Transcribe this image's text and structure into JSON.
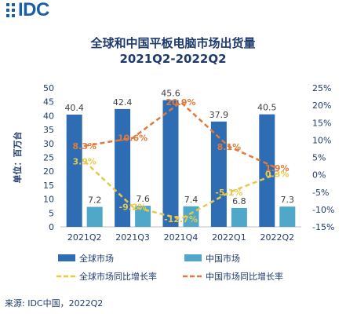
{
  "logo": {
    "text": "IDC"
  },
  "source": "来源: IDC中国，2022Q2",
  "chart_data": {
    "type": "bar",
    "title": "全球和中国平板电脑市场出货量",
    "subtitle": "2021Q2-2022Q2",
    "ylabel": "单位：百万台",
    "categories": [
      "2021Q2",
      "2021Q3",
      "2021Q4",
      "2022Q1",
      "2022Q2"
    ],
    "ylim": [
      0,
      50
    ],
    "yticks": [
      "0",
      "5",
      "10",
      "15",
      "20",
      "25",
      "30",
      "35",
      "40",
      "45",
      "50"
    ],
    "y2lim": [
      -15,
      25
    ],
    "y2ticks": [
      "-15%",
      "-10%",
      "-5%",
      "0%",
      "5%",
      "10%",
      "15%",
      "20%",
      "25%"
    ],
    "series": [
      {
        "name": "全球市场",
        "kind": "bar",
        "color": "#2e6db4",
        "values": [
          40.4,
          42.4,
          45.6,
          37.9,
          40.5
        ],
        "labels": [
          "40.4",
          "42.4",
          "45.6",
          "37.9",
          "40.5"
        ]
      },
      {
        "name": "中国市场",
        "kind": "bar",
        "color": "#4fa8c9",
        "values": [
          7.2,
          7.6,
          7.4,
          6.8,
          7.3
        ],
        "labels": [
          "7.2",
          "7.6",
          "7.4",
          "6.8",
          "7.3"
        ]
      },
      {
        "name": "全球市场同比增长率",
        "kind": "line",
        "axis": "right",
        "color": "#e8c84a",
        "values": [
          3.9,
          -9.2,
          -12.7,
          -5.1,
          0.3
        ],
        "labels": [
          "3.9%",
          "-9.2%",
          "-12.7%",
          "-5.1%",
          "0.3%"
        ]
      },
      {
        "name": "中国市场同比增长率",
        "kind": "line",
        "axis": "right",
        "color": "#e07a3a",
        "values": [
          8.3,
          10.6,
          20.9,
          8.1,
          1.9
        ],
        "labels": [
          "8.3%",
          "10.6%",
          "20.9%",
          "8.1%",
          "1.9%"
        ]
      }
    ],
    "legend": "bottom"
  }
}
